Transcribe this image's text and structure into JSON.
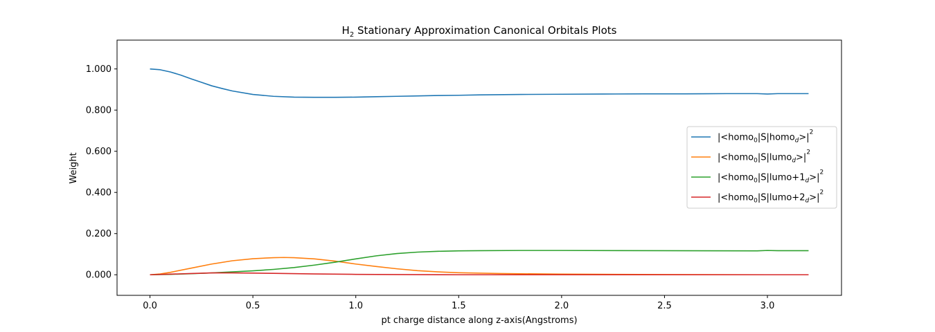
{
  "chart_data": {
    "type": "line",
    "title": {
      "main": "H",
      "sub": "2",
      "rest": " Stationary Approximation Canonical Orbitals Plots"
    },
    "xlabel": "pt charge distance along z-axis(Angstroms)",
    "ylabel": "Weight",
    "xlim": [
      -0.16,
      3.36
    ],
    "ylim": [
      -0.1,
      1.14
    ],
    "xticks": [
      0.0,
      0.5,
      1.0,
      1.5,
      2.0,
      2.5,
      3.0
    ],
    "xtick_labels": [
      "0.0",
      "0.5",
      "1.0",
      "1.5",
      "2.0",
      "2.5",
      "3.0"
    ],
    "yticks": [
      0.0,
      0.2,
      0.4,
      0.6,
      0.8,
      1.0
    ],
    "ytick_labels": [
      "0.000",
      "0.200",
      "0.400",
      "0.600",
      "0.800",
      "1.000"
    ],
    "grid": false,
    "legend_position": "right",
    "series": [
      {
        "legend": {
          "pre": "|<homo",
          "s1": "0",
          "mid": "|S|homo",
          "s2": "d",
          "post": ">|",
          "s3": "2"
        },
        "color": "#1f77b4",
        "x": [
          0.0,
          0.05,
          0.1,
          0.15,
          0.2,
          0.25,
          0.3,
          0.35,
          0.4,
          0.5,
          0.6,
          0.7,
          0.8,
          0.9,
          1.0,
          1.1,
          1.2,
          1.3,
          1.4,
          1.5,
          1.6,
          1.8,
          2.0,
          2.2,
          2.4,
          2.6,
          2.8,
          2.95,
          3.0,
          3.05,
          3.1,
          3.2
        ],
        "y": [
          1.0,
          0.996,
          0.985,
          0.97,
          0.952,
          0.935,
          0.918,
          0.905,
          0.893,
          0.876,
          0.867,
          0.863,
          0.862,
          0.862,
          0.863,
          0.865,
          0.867,
          0.869,
          0.871,
          0.872,
          0.874,
          0.876,
          0.877,
          0.878,
          0.879,
          0.879,
          0.88,
          0.88,
          0.878,
          0.88,
          0.88,
          0.88
        ]
      },
      {
        "legend": {
          "pre": "|<homo",
          "s1": "0",
          "mid": "|S|lumo",
          "s2": "d",
          "post": ">|",
          "s3": "2"
        },
        "color": "#ff7f0e",
        "x": [
          0.0,
          0.05,
          0.1,
          0.2,
          0.3,
          0.4,
          0.5,
          0.6,
          0.65,
          0.7,
          0.8,
          0.9,
          1.0,
          1.1,
          1.2,
          1.3,
          1.4,
          1.5,
          1.7,
          2.0,
          2.5,
          3.0,
          3.2
        ],
        "y": [
          0.0,
          0.004,
          0.012,
          0.032,
          0.052,
          0.068,
          0.078,
          0.083,
          0.084,
          0.083,
          0.077,
          0.066,
          0.052,
          0.04,
          0.029,
          0.02,
          0.014,
          0.01,
          0.006,
          0.003,
          0.001,
          0.0,
          0.0
        ]
      },
      {
        "legend": {
          "pre": "|<homo",
          "s1": "0",
          "mid": "|S|lumo+1",
          "s2": "d",
          "post": ">|",
          "s3": "2"
        },
        "color": "#2ca02c",
        "x": [
          0.0,
          0.1,
          0.2,
          0.3,
          0.4,
          0.5,
          0.6,
          0.7,
          0.8,
          0.9,
          1.0,
          1.1,
          1.2,
          1.3,
          1.4,
          1.5,
          1.6,
          1.8,
          2.0,
          2.5,
          2.95,
          3.0,
          3.05,
          3.2
        ],
        "y": [
          0.0,
          0.002,
          0.005,
          0.009,
          0.014,
          0.019,
          0.026,
          0.035,
          0.047,
          0.061,
          0.077,
          0.092,
          0.103,
          0.11,
          0.114,
          0.116,
          0.117,
          0.118,
          0.118,
          0.117,
          0.116,
          0.118,
          0.117,
          0.117
        ]
      },
      {
        "legend": {
          "pre": "|<homo",
          "s1": "0",
          "mid": "|S|lumo+2",
          "s2": "d",
          "post": ">|",
          "s3": "2"
        },
        "color": "#d62728",
        "x": [
          0.0,
          0.1,
          0.2,
          0.3,
          0.4,
          0.5,
          0.6,
          0.8,
          1.0,
          1.2,
          1.5,
          2.0,
          2.5,
          3.0,
          3.2
        ],
        "y": [
          0.0,
          0.003,
          0.006,
          0.009,
          0.009,
          0.008,
          0.007,
          0.004,
          0.002,
          0.001,
          0.0,
          0.0,
          0.0,
          0.0,
          0.0
        ]
      }
    ]
  }
}
